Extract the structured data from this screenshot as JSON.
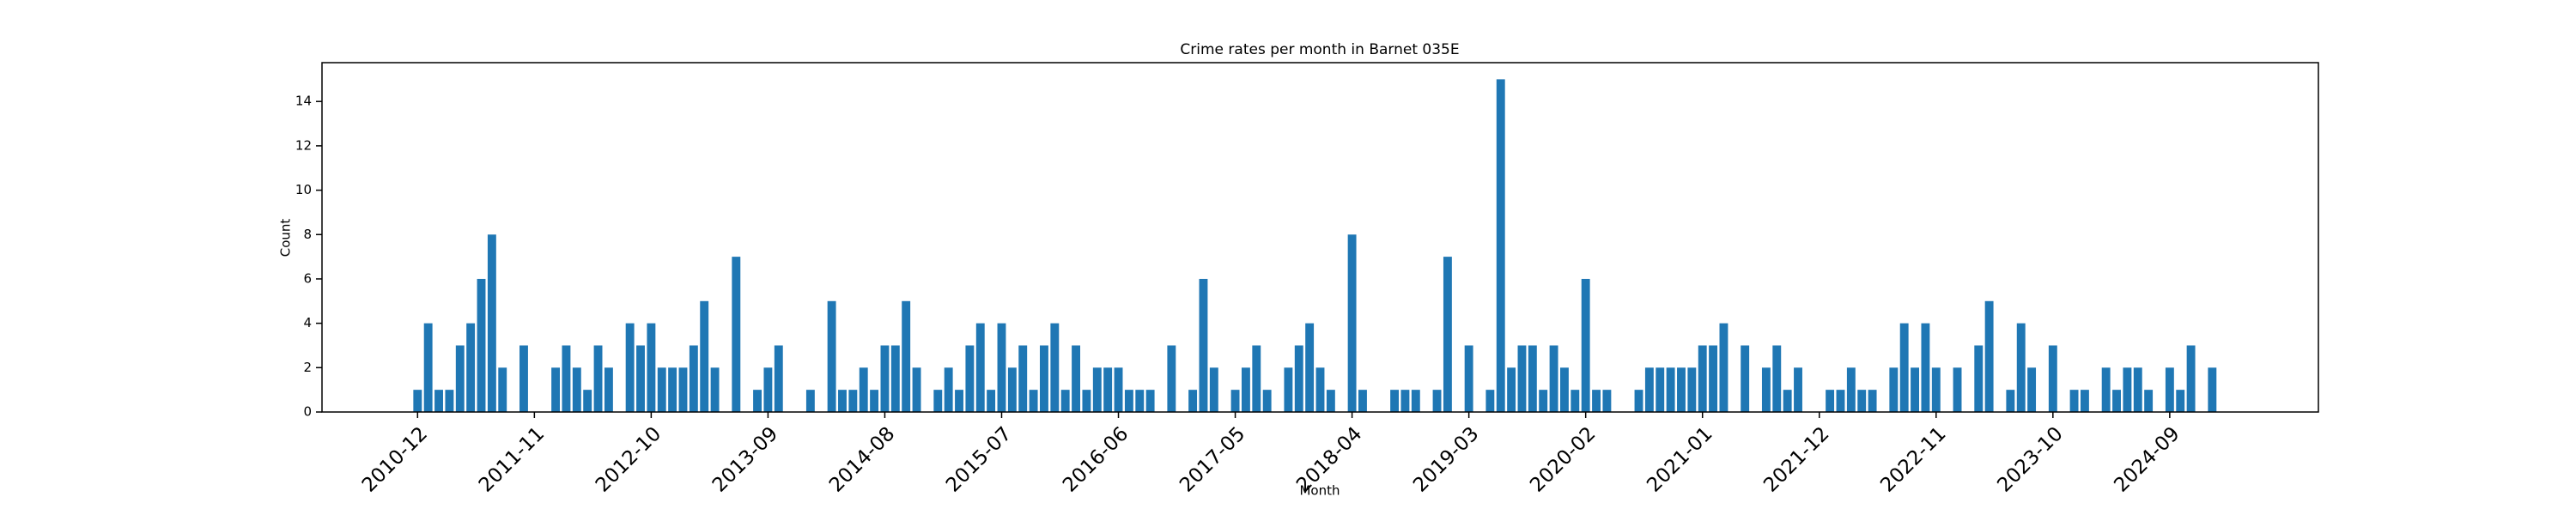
{
  "chart_data": {
    "type": "bar",
    "title": "Crime rates per month in Barnet 035E",
    "x_label": "Month",
    "y_label": "Count",
    "color": "#1f77b4",
    "x": [
      "2010-12",
      "2011-01",
      "2011-02",
      "2011-03",
      "2011-04",
      "2011-05",
      "2011-06",
      "2011-07",
      "2011-08",
      "2011-10",
      "2012-01",
      "2012-02",
      "2012-03",
      "2012-04",
      "2012-05",
      "2012-06",
      "2012-08",
      "2012-09",
      "2012-10",
      "2012-11",
      "2012-12",
      "2013-01",
      "2013-02",
      "2013-03",
      "2013-04",
      "2013-06",
      "2013-08",
      "2013-09",
      "2013-10",
      "2014-01",
      "2014-03",
      "2014-04",
      "2014-05",
      "2014-06",
      "2014-07",
      "2014-08",
      "2014-09",
      "2014-10",
      "2014-11",
      "2015-01",
      "2015-02",
      "2015-03",
      "2015-04",
      "2015-05",
      "2015-06",
      "2015-07",
      "2015-08",
      "2015-09",
      "2015-10",
      "2015-11",
      "2015-12",
      "2016-01",
      "2016-02",
      "2016-03",
      "2016-04",
      "2016-05",
      "2016-06",
      "2016-07",
      "2016-08",
      "2016-09",
      "2016-11",
      "2017-01",
      "2017-02",
      "2017-03",
      "2017-05",
      "2017-06",
      "2017-07",
      "2017-08",
      "2017-10",
      "2017-11",
      "2017-12",
      "2018-01",
      "2018-02",
      "2018-04",
      "2018-05",
      "2018-08",
      "2018-09",
      "2018-10",
      "2018-12",
      "2019-01",
      "2019-03",
      "2019-05",
      "2019-06",
      "2019-07",
      "2019-08",
      "2019-09",
      "2019-10",
      "2019-11",
      "2019-12",
      "2020-01",
      "2020-02",
      "2020-03",
      "2020-04",
      "2020-07",
      "2020-08",
      "2020-09",
      "2020-10",
      "2020-11",
      "2020-12",
      "2021-01",
      "2021-02",
      "2021-03",
      "2021-05",
      "2021-07",
      "2021-08",
      "2021-09",
      "2021-10",
      "2022-01",
      "2022-02",
      "2022-03",
      "2022-04",
      "2022-05",
      "2022-07",
      "2022-08",
      "2022-09",
      "2022-10",
      "2022-11",
      "2023-01",
      "2023-03",
      "2023-04",
      "2023-06",
      "2023-07",
      "2023-08",
      "2023-10",
      "2023-12",
      "2024-01",
      "2024-03",
      "2024-04",
      "2024-05",
      "2024-06",
      "2024-07",
      "2024-09",
      "2024-10",
      "2024-11",
      "2025-01"
    ],
    "values": [
      1,
      4,
      1,
      1,
      3,
      4,
      6,
      8,
      2,
      3,
      2,
      3,
      2,
      1,
      3,
      2,
      4,
      3,
      4,
      2,
      2,
      2,
      3,
      5,
      2,
      7,
      1,
      2,
      3,
      1,
      5,
      1,
      1,
      2,
      1,
      3,
      3,
      5,
      2,
      1,
      2,
      1,
      3,
      4,
      1,
      4,
      2,
      3,
      1,
      3,
      4,
      1,
      3,
      1,
      2,
      2,
      2,
      1,
      1,
      1,
      3,
      1,
      6,
      2,
      1,
      2,
      3,
      1,
      2,
      3,
      4,
      2,
      1,
      8,
      1,
      1,
      1,
      1,
      1,
      7,
      3,
      1,
      15,
      2,
      3,
      3,
      1,
      3,
      2,
      1,
      6,
      1,
      1,
      1,
      2,
      2,
      2,
      2,
      2,
      3,
      3,
      4,
      3,
      2,
      3,
      1,
      2,
      1,
      1,
      2,
      1,
      1,
      2,
      4,
      2,
      4,
      2,
      2,
      3,
      5,
      1,
      4,
      2,
      3,
      1,
      1,
      2,
      1,
      2,
      2,
      1,
      2,
      1,
      3,
      2
    ],
    "xlim": [
      "2010-03",
      "2025-11"
    ],
    "xticks": [
      "2010-12",
      "2011-11",
      "2012-10",
      "2013-09",
      "2014-08",
      "2015-07",
      "2016-06",
      "2017-05",
      "2018-04",
      "2019-03",
      "2020-02",
      "2021-01",
      "2021-12",
      "2022-11",
      "2023-10",
      "2024-09"
    ],
    "ylim": [
      0,
      15.75
    ],
    "yticks": [
      0,
      2,
      4,
      6,
      8,
      10,
      12,
      14
    ]
  }
}
